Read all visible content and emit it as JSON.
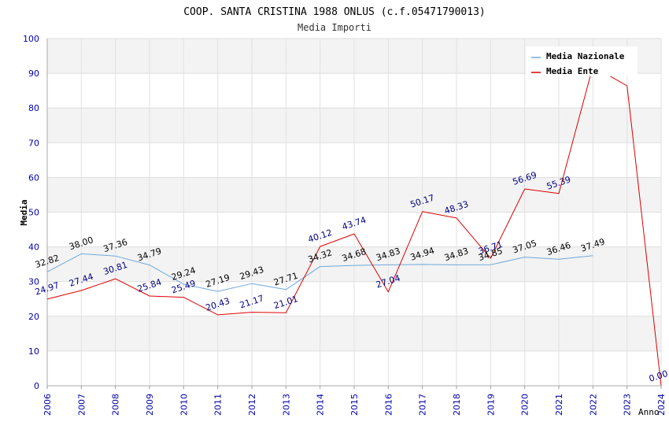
{
  "chart_data": {
    "type": "line",
    "title": "COOP. SANTA CRISTINA 1988 ONLUS (c.f.05471790013)",
    "subtitle": "Media Importi",
    "xlabel": "Anno",
    "ylabel": "Media",
    "ylim": [
      0,
      100
    ],
    "yticks": [
      "0",
      "10",
      "20",
      "30",
      "40",
      "50",
      "60",
      "70",
      "80",
      "90",
      "100"
    ],
    "categories": [
      "2006",
      "2007",
      "2008",
      "2009",
      "2010",
      "2011",
      "2012",
      "2013",
      "2014",
      "2015",
      "2016",
      "2017",
      "2018",
      "2019",
      "2020",
      "2021",
      "2022",
      "2023",
      "2024"
    ],
    "legend_position": "top-right",
    "series": [
      {
        "name": "Media Nazionale",
        "color": "#6fa8dc",
        "label_color": "#000000",
        "values": [
          32.82,
          38.0,
          37.36,
          34.79,
          29.24,
          27.19,
          29.43,
          27.71,
          34.32,
          34.68,
          34.83,
          34.94,
          34.83,
          34.85,
          37.05,
          36.46,
          37.49,
          null,
          null
        ],
        "labels": [
          "32.82",
          "38.00",
          "37.36",
          "34.79",
          "29.24",
          "27.19",
          "29.43",
          "27.71",
          "34.32",
          "34.68",
          "34.83",
          "34.94",
          "34.83",
          "34.85",
          "37.05",
          "36.46",
          "37.49",
          null,
          null
        ]
      },
      {
        "name": "Media Ente",
        "color": "#dd0000",
        "label_color": "#000080",
        "values": [
          24.97,
          27.44,
          30.81,
          25.84,
          25.49,
          20.43,
          21.17,
          21.01,
          40.12,
          43.74,
          27.04,
          50.17,
          48.33,
          36.71,
          56.69,
          55.39,
          92.0,
          86.4,
          0.0
        ],
        "labels": [
          "24.97",
          "27.44",
          "30.81",
          "25.84",
          "25.49",
          "20.43",
          "21.17",
          "21.01",
          "40.12",
          "43.74",
          "27.04",
          "50.17",
          "48.33",
          "36.71",
          "56.69",
          "55.39",
          null,
          null,
          "0.00"
        ]
      }
    ]
  }
}
